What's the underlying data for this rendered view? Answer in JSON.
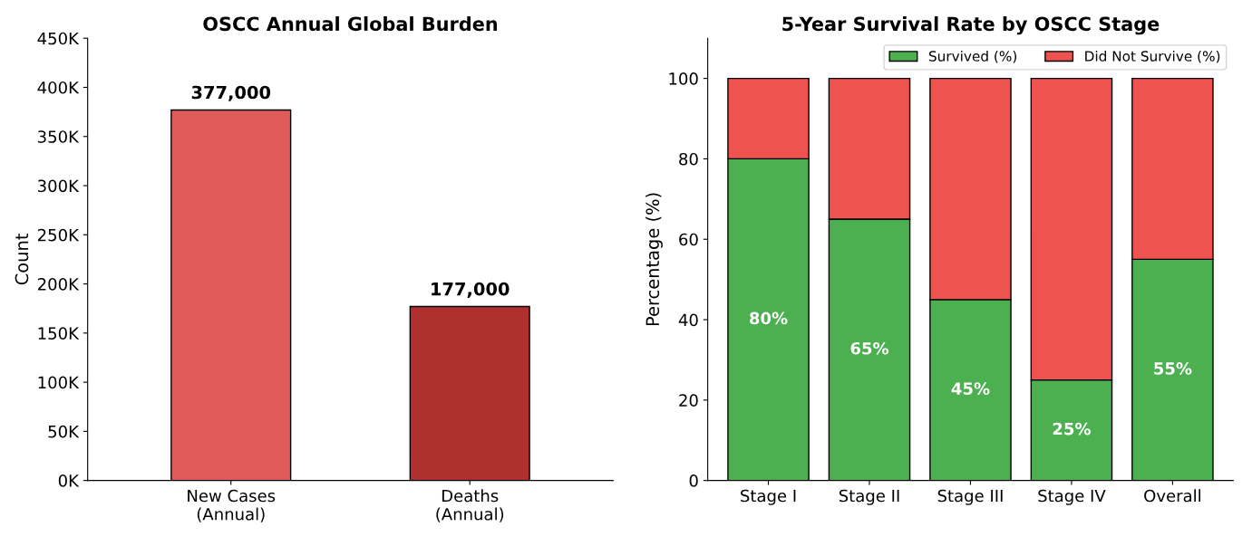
{
  "chart_data": [
    {
      "type": "bar",
      "title": "OSCC Annual Global Burden",
      "ylabel": "Count",
      "categories": [
        "New Cases\n(Annual)",
        "Deaths\n(Annual)"
      ],
      "values": [
        377000,
        177000
      ],
      "colors": [
        "#e05c5c",
        "#b03030"
      ],
      "value_labels": [
        "377,000",
        "177,000"
      ],
      "ylim": [
        0,
        450000
      ],
      "yticks": [
        {
          "value": 0,
          "label": "0K"
        },
        {
          "value": 50000,
          "label": "50K"
        },
        {
          "value": 100000,
          "label": "100K"
        },
        {
          "value": 150000,
          "label": "150K"
        },
        {
          "value": 200000,
          "label": "200K"
        },
        {
          "value": 250000,
          "label": "250K"
        },
        {
          "value": 300000,
          "label": "300K"
        },
        {
          "value": 350000,
          "label": "350K"
        },
        {
          "value": 400000,
          "label": "400K"
        },
        {
          "value": 450000,
          "label": "450K"
        }
      ],
      "grid": false,
      "legend": false
    },
    {
      "type": "bar",
      "stacked": true,
      "title": "5-Year Survival Rate by OSCC Stage",
      "ylabel": "Percentage (%)",
      "categories": [
        "Stage I",
        "Stage II",
        "Stage III",
        "Stage IV",
        "Overall"
      ],
      "series": [
        {
          "name": "Survived (%)",
          "color": "#4caf50",
          "values": [
            80,
            65,
            45,
            25,
            55
          ],
          "value_labels": [
            "80%",
            "65%",
            "45%",
            "25%",
            "55%"
          ]
        },
        {
          "name": "Did Not Survive (%)",
          "color": "#ef5350",
          "values": [
            20,
            35,
            55,
            75,
            45
          ]
        }
      ],
      "ylim": [
        0,
        110
      ],
      "yticks": [
        0,
        20,
        40,
        60,
        80,
        100
      ],
      "grid": false,
      "legend": "top right"
    }
  ]
}
